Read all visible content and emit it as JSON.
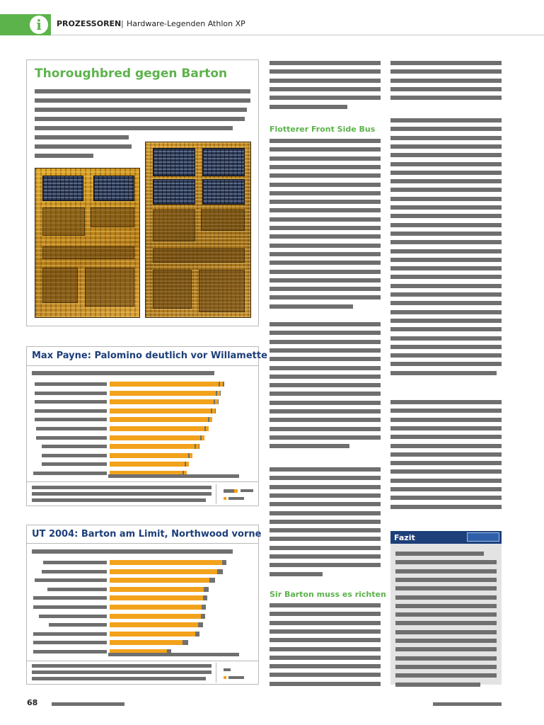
{
  "header": {
    "section": "PROZESSOREN",
    "separator": "|",
    "subtitle": "Hardware-Legenden Athlon XP",
    "info_icon": "i"
  },
  "box1": {
    "title": "Thoroughbred gegen Barton",
    "images": [
      "chip-die-thoroughbred",
      "chip-die-barton"
    ]
  },
  "column2": {
    "subheads": [
      "Flotterer Front Side Bus",
      "Sir Barton muss es richten"
    ]
  },
  "chart1": {
    "title": "Max Payne: Palomino deutlich vor Willamette",
    "chart_data": {
      "type": "bar",
      "title": "Max Payne: Palomino deutlich vor Willamette",
      "series_primary": [
        100,
        97,
        95,
        93,
        90,
        87,
        83,
        78,
        72,
        69,
        67
      ],
      "series_secondary": [
        105,
        102,
        100,
        97,
        94,
        91,
        87,
        82,
        76,
        72,
        70
      ],
      "marker_fraction": [
        0.97,
        0.95,
        0.95,
        0.96,
        0.96,
        0.97,
        0.96,
        0.94,
        0.96,
        0.96,
        0.97
      ],
      "colors": {
        "primary": "#f2a21b",
        "secondary": "#707070"
      }
    }
  },
  "chart2": {
    "title": "UT 2004: Barton am Limit, Northwood vorne",
    "chart_data": {
      "type": "bar",
      "title": "UT 2004: Barton am Limit, Northwood vorne",
      "series_primary": [
        100,
        96,
        89,
        84,
        83,
        82,
        81,
        79,
        76,
        65,
        51
      ],
      "series_secondary": [
        104,
        101,
        94,
        88,
        87,
        86,
        85,
        83,
        80,
        70,
        55
      ],
      "colors": {
        "primary": "#f2a21b",
        "secondary": "#707070"
      }
    }
  },
  "fazit": {
    "title": "Fazit"
  },
  "footer": {
    "page_number": "68"
  }
}
